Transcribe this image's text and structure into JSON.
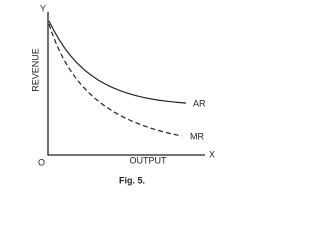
{
  "labels": {
    "y_axis": "Y",
    "x_axis": "X",
    "origin": "O",
    "vertical": "REVENUE",
    "horizontal": "OUTPUT",
    "ar": "AR",
    "mr": "MR"
  },
  "caption": "Fig. 5."
}
